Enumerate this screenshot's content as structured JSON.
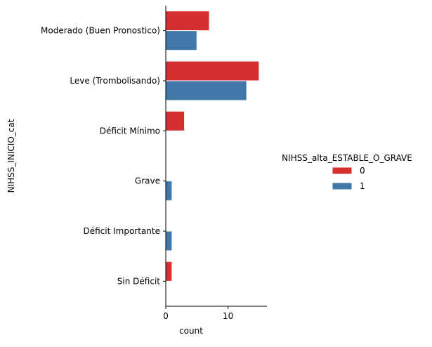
{
  "chart_data": {
    "type": "bar",
    "orientation": "horizontal",
    "categories": [
      "Moderado (Buen Pronostico)",
      "Leve (Trombolisando)",
      "Déficit Mínimo",
      "Grave",
      "Déficit Importante",
      "Sin Déficit"
    ],
    "series": [
      {
        "name": "0",
        "color": "#d62f30",
        "values": [
          7,
          15,
          3,
          0,
          0,
          1
        ]
      },
      {
        "name": "1",
        "color": "#4178aa",
        "values": [
          5,
          13,
          0,
          1,
          1,
          0
        ]
      }
    ],
    "xlabel": "count",
    "ylabel": "NIHSS_INICIO_cat",
    "xlim": [
      0,
      16
    ],
    "xticks": [
      0,
      10
    ],
    "legend": {
      "title": "NIHSS_alta_ESTABLE_O_GRAVE",
      "position": "right"
    },
    "grid": false
  }
}
